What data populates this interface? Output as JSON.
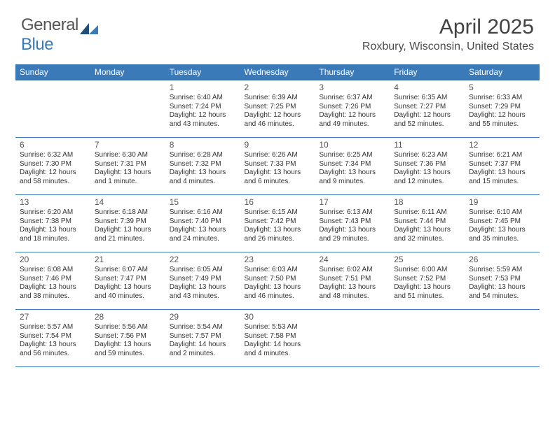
{
  "logo": {
    "general": "General",
    "blue": "Blue"
  },
  "title": "April 2025",
  "location": "Roxbury, Wisconsin, United States",
  "header_bg": "#3a7ab8",
  "weekdays": [
    "Sunday",
    "Monday",
    "Tuesday",
    "Wednesday",
    "Thursday",
    "Friday",
    "Saturday"
  ],
  "weeks": [
    [
      null,
      null,
      {
        "d": "1",
        "sr": "Sunrise: 6:40 AM",
        "ss": "Sunset: 7:24 PM",
        "dl": "Daylight: 12 hours and 43 minutes."
      },
      {
        "d": "2",
        "sr": "Sunrise: 6:39 AM",
        "ss": "Sunset: 7:25 PM",
        "dl": "Daylight: 12 hours and 46 minutes."
      },
      {
        "d": "3",
        "sr": "Sunrise: 6:37 AM",
        "ss": "Sunset: 7:26 PM",
        "dl": "Daylight: 12 hours and 49 minutes."
      },
      {
        "d": "4",
        "sr": "Sunrise: 6:35 AM",
        "ss": "Sunset: 7:27 PM",
        "dl": "Daylight: 12 hours and 52 minutes."
      },
      {
        "d": "5",
        "sr": "Sunrise: 6:33 AM",
        "ss": "Sunset: 7:29 PM",
        "dl": "Daylight: 12 hours and 55 minutes."
      }
    ],
    [
      {
        "d": "6",
        "sr": "Sunrise: 6:32 AM",
        "ss": "Sunset: 7:30 PM",
        "dl": "Daylight: 12 hours and 58 minutes."
      },
      {
        "d": "7",
        "sr": "Sunrise: 6:30 AM",
        "ss": "Sunset: 7:31 PM",
        "dl": "Daylight: 13 hours and 1 minute."
      },
      {
        "d": "8",
        "sr": "Sunrise: 6:28 AM",
        "ss": "Sunset: 7:32 PM",
        "dl": "Daylight: 13 hours and 4 minutes."
      },
      {
        "d": "9",
        "sr": "Sunrise: 6:26 AM",
        "ss": "Sunset: 7:33 PM",
        "dl": "Daylight: 13 hours and 6 minutes."
      },
      {
        "d": "10",
        "sr": "Sunrise: 6:25 AM",
        "ss": "Sunset: 7:34 PM",
        "dl": "Daylight: 13 hours and 9 minutes."
      },
      {
        "d": "11",
        "sr": "Sunrise: 6:23 AM",
        "ss": "Sunset: 7:36 PM",
        "dl": "Daylight: 13 hours and 12 minutes."
      },
      {
        "d": "12",
        "sr": "Sunrise: 6:21 AM",
        "ss": "Sunset: 7:37 PM",
        "dl": "Daylight: 13 hours and 15 minutes."
      }
    ],
    [
      {
        "d": "13",
        "sr": "Sunrise: 6:20 AM",
        "ss": "Sunset: 7:38 PM",
        "dl": "Daylight: 13 hours and 18 minutes."
      },
      {
        "d": "14",
        "sr": "Sunrise: 6:18 AM",
        "ss": "Sunset: 7:39 PM",
        "dl": "Daylight: 13 hours and 21 minutes."
      },
      {
        "d": "15",
        "sr": "Sunrise: 6:16 AM",
        "ss": "Sunset: 7:40 PM",
        "dl": "Daylight: 13 hours and 24 minutes."
      },
      {
        "d": "16",
        "sr": "Sunrise: 6:15 AM",
        "ss": "Sunset: 7:42 PM",
        "dl": "Daylight: 13 hours and 26 minutes."
      },
      {
        "d": "17",
        "sr": "Sunrise: 6:13 AM",
        "ss": "Sunset: 7:43 PM",
        "dl": "Daylight: 13 hours and 29 minutes."
      },
      {
        "d": "18",
        "sr": "Sunrise: 6:11 AM",
        "ss": "Sunset: 7:44 PM",
        "dl": "Daylight: 13 hours and 32 minutes."
      },
      {
        "d": "19",
        "sr": "Sunrise: 6:10 AM",
        "ss": "Sunset: 7:45 PM",
        "dl": "Daylight: 13 hours and 35 minutes."
      }
    ],
    [
      {
        "d": "20",
        "sr": "Sunrise: 6:08 AM",
        "ss": "Sunset: 7:46 PM",
        "dl": "Daylight: 13 hours and 38 minutes."
      },
      {
        "d": "21",
        "sr": "Sunrise: 6:07 AM",
        "ss": "Sunset: 7:47 PM",
        "dl": "Daylight: 13 hours and 40 minutes."
      },
      {
        "d": "22",
        "sr": "Sunrise: 6:05 AM",
        "ss": "Sunset: 7:49 PM",
        "dl": "Daylight: 13 hours and 43 minutes."
      },
      {
        "d": "23",
        "sr": "Sunrise: 6:03 AM",
        "ss": "Sunset: 7:50 PM",
        "dl": "Daylight: 13 hours and 46 minutes."
      },
      {
        "d": "24",
        "sr": "Sunrise: 6:02 AM",
        "ss": "Sunset: 7:51 PM",
        "dl": "Daylight: 13 hours and 48 minutes."
      },
      {
        "d": "25",
        "sr": "Sunrise: 6:00 AM",
        "ss": "Sunset: 7:52 PM",
        "dl": "Daylight: 13 hours and 51 minutes."
      },
      {
        "d": "26",
        "sr": "Sunrise: 5:59 AM",
        "ss": "Sunset: 7:53 PM",
        "dl": "Daylight: 13 hours and 54 minutes."
      }
    ],
    [
      {
        "d": "27",
        "sr": "Sunrise: 5:57 AM",
        "ss": "Sunset: 7:54 PM",
        "dl": "Daylight: 13 hours and 56 minutes."
      },
      {
        "d": "28",
        "sr": "Sunrise: 5:56 AM",
        "ss": "Sunset: 7:56 PM",
        "dl": "Daylight: 13 hours and 59 minutes."
      },
      {
        "d": "29",
        "sr": "Sunrise: 5:54 AM",
        "ss": "Sunset: 7:57 PM",
        "dl": "Daylight: 14 hours and 2 minutes."
      },
      {
        "d": "30",
        "sr": "Sunrise: 5:53 AM",
        "ss": "Sunset: 7:58 PM",
        "dl": "Daylight: 14 hours and 4 minutes."
      },
      null,
      null,
      null
    ]
  ]
}
